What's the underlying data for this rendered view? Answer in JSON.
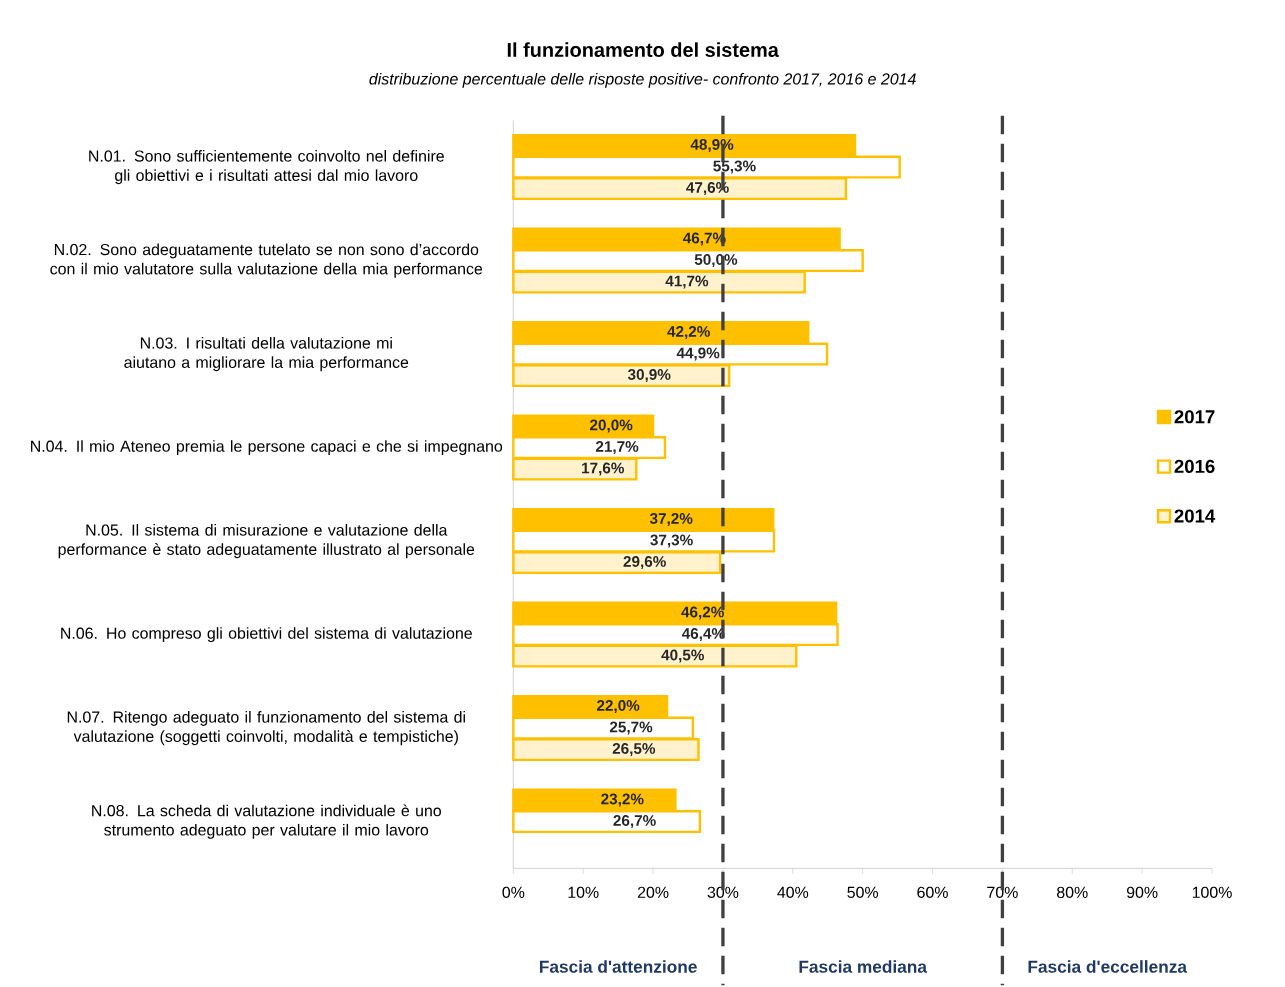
{
  "chart_data": {
    "type": "bar",
    "orientation": "horizontal",
    "title": "Il funzionamento del sistema",
    "subtitle": "distribuzione percentuale delle risposte positive- confronto 2017, 2016 e 2014",
    "categories": [
      "N.01. Sono sufficientemente coinvolto nel definire gli obiettivi e i risultati attesi dal mio lavoro",
      "N.02. Sono adeguatamente tutelato se non sono d’accordo con il mio valutatore sulla valutazione della mia performance",
      "N.03. I risultati della valutazione mi aiutano a migliorare la mia performance",
      "N.04. Il mio Ateneo premia le persone capaci e che si impegnano",
      "N.05. Il sistema di misurazione e valutazione della performance è stato adeguatamente illustrato al personale",
      "N.06. Ho compreso gli obiettivi del sistema di valutazione",
      "N.07. Ritengo adeguato il funzionamento del sistema di valutazione (soggetti coinvolti, modalità e tempistiche)",
      "N.08. La scheda di valutazione individuale è uno strumento adeguato per valutare il mio lavoro"
    ],
    "series": [
      {
        "name": "2017",
        "color": "#ffc000",
        "values": [
          48.9,
          46.7,
          42.2,
          20.0,
          37.2,
          46.2,
          22.0,
          23.2
        ],
        "value_labels": [
          "48,9%",
          "46,7%",
          "42,2%",
          "20,0%",
          "37,2%",
          "46,2%",
          "22,0%",
          "23,2%"
        ]
      },
      {
        "name": "2016",
        "color": "#ffffff",
        "values": [
          55.3,
          50.0,
          44.9,
          21.7,
          37.3,
          46.4,
          25.7,
          26.7
        ],
        "value_labels": [
          "55,3%",
          "50,0%",
          "44,9%",
          "21,7%",
          "37,3%",
          "46,4%",
          "25,7%",
          "26,7%"
        ]
      },
      {
        "name": "2014",
        "color": "#fff2cc",
        "values": [
          47.6,
          41.7,
          30.9,
          17.6,
          29.6,
          40.5,
          26.5,
          null
        ],
        "value_labels": [
          "47,6%",
          "41,7%",
          "30,9%",
          "17,6%",
          "29,6%",
          "40,5%",
          "26,5%",
          null
        ]
      }
    ],
    "xlim": [
      0,
      100
    ],
    "xticks": [
      {
        "value": 0,
        "label": "0%"
      },
      {
        "value": 10,
        "label": "10%"
      },
      {
        "value": 20,
        "label": "20%"
      },
      {
        "value": 30,
        "label": "30%"
      },
      {
        "value": 40,
        "label": "40%"
      },
      {
        "value": 50,
        "label": "50%"
      },
      {
        "value": 60,
        "label": "60%"
      },
      {
        "value": 70,
        "label": "70%"
      },
      {
        "value": 80,
        "label": "80%"
      },
      {
        "value": 90,
        "label": "90%"
      },
      {
        "value": 100,
        "label": "100%"
      }
    ],
    "ref_lines": [
      {
        "axis": "x",
        "value": 30,
        "color": "#404040",
        "line_style": "dashed"
      },
      {
        "axis": "x",
        "value": 70,
        "color": "#404040",
        "line_style": "dashed"
      }
    ],
    "annotations": [
      "Fascia d'attenzione",
      "Fascia mediana",
      "Fascia d'eccellenza"
    ],
    "grid": false,
    "legend": "right"
  }
}
